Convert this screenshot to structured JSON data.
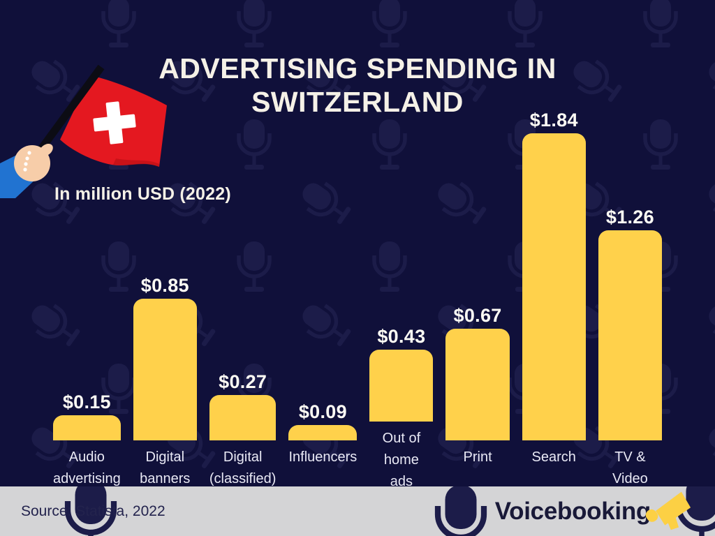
{
  "header": {
    "title_lines": [
      "ADVERTISING SPENDING IN",
      "SWITZERLAND"
    ],
    "title": "ADVERTISING SPENDING IN SWITZERLAND",
    "subtitle": "In million USD (2022)"
  },
  "footer": {
    "source": "Source: Statista, 2022",
    "brand": "Voicebooking"
  },
  "colors": {
    "background": "#10103a",
    "bar": "#ffd14b",
    "title_text": "#f5f1e7",
    "category_text": "#e9e9f5",
    "footer_bg": "#d4d4d6",
    "footer_text": "#23234d",
    "brand_text": "#191938",
    "brand_accent": "#fcd044",
    "flag_red": "#e41820",
    "watermark": "#1c1c49"
  },
  "icons": [
    "microphone-icon",
    "megaphone-icon",
    "switzerland-flag"
  ],
  "chart_data": {
    "type": "bar",
    "title": "Advertising spending in Switzerland",
    "subtitle": "In million USD (2022)",
    "xlabel": "",
    "ylabel": "",
    "unit": "million USD",
    "year": "2022",
    "ylim": [
      0,
      2.0
    ],
    "grid": false,
    "legend": false,
    "bar_color": "#ffd14b",
    "categories": [
      "Audio advertising",
      "Digital banners",
      "Digital (classified)",
      "Influencers",
      "Out of home ads",
      "Print",
      "Search",
      "TV & Video"
    ],
    "category_labels": [
      "Audio\nadvertising",
      "Digital\nbanners",
      "Digital\n(classified)",
      "Influencers",
      "Out of home\nads",
      "Print",
      "Search",
      "TV & Video"
    ],
    "values": [
      0.15,
      0.85,
      0.27,
      0.09,
      0.43,
      0.67,
      1.84,
      1.26
    ],
    "value_labels": [
      "$0.15",
      "$0.85",
      "$0.27",
      "$0.09",
      "$0.43",
      "$0.67",
      "$1.84",
      "$1.26"
    ]
  }
}
